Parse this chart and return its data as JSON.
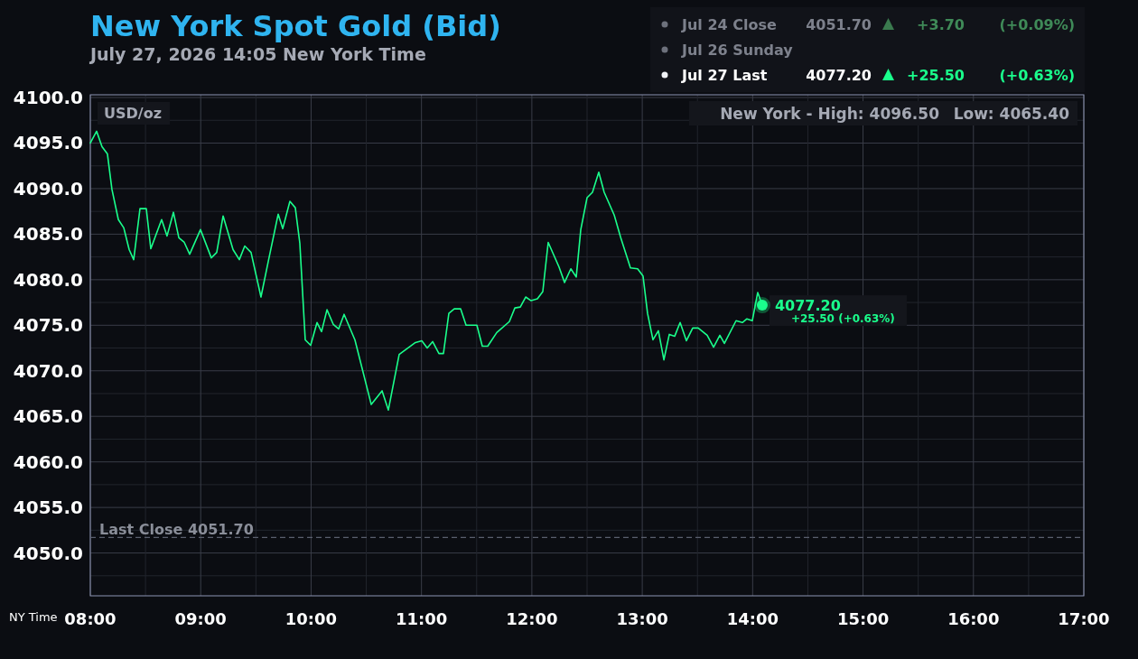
{
  "chart_data": {
    "type": "line",
    "title": "New York Spot Gold (Bid)",
    "subtitle": "July 27, 2026 14:05 New York Time",
    "xlabel": "NY Time",
    "ylabel": "USD/oz",
    "x": [
      8.0,
      8.057,
      8.106,
      8.155,
      8.196,
      8.254,
      8.303,
      8.352,
      8.393,
      8.45,
      8.507,
      8.548,
      8.646,
      8.695,
      8.753,
      8.802,
      8.851,
      8.9,
      8.998,
      9.096,
      9.145,
      9.203,
      9.293,
      9.35,
      9.399,
      9.456,
      9.546,
      9.612,
      9.702,
      9.743,
      9.808,
      9.857,
      9.898,
      9.947,
      9.996,
      10.054,
      10.095,
      10.144,
      10.201,
      10.25,
      10.299,
      10.397,
      10.545,
      10.643,
      10.7,
      10.798,
      10.945,
      11.003,
      11.052,
      11.101,
      11.158,
      11.199,
      11.248,
      11.297,
      11.355,
      11.404,
      11.502,
      11.551,
      11.6,
      11.682,
      11.796,
      11.846,
      11.895,
      11.944,
      11.993,
      12.05,
      12.099,
      12.148,
      12.246,
      12.296,
      12.353,
      12.402,
      12.443,
      12.5,
      12.549,
      12.606,
      12.655,
      12.746,
      12.803,
      12.893,
      12.958,
      13.007,
      13.048,
      13.097,
      13.146,
      13.196,
      13.245,
      13.294,
      13.343,
      13.4,
      13.457,
      13.507,
      13.588,
      13.646,
      13.703,
      13.744,
      13.85,
      13.907,
      13.948,
      13.997,
      14.046,
      14.087
    ],
    "series": [
      {
        "color": "#1aff8c",
        "values": [
          4095.0,
          4096.3,
          4094.6,
          4093.8,
          4089.9,
          4086.6,
          4085.7,
          4083.3,
          4082.2,
          4087.8,
          4087.8,
          4083.4,
          4086.6,
          4084.8,
          4087.4,
          4084.6,
          4084.1,
          4082.8,
          4085.5,
          4082.4,
          4083.0,
          4087.0,
          4083.3,
          4082.2,
          4083.7,
          4083.0,
          4078.1,
          4082.0,
          4087.2,
          4085.6,
          4088.6,
          4087.9,
          4084.0,
          4073.4,
          4072.8,
          4075.3,
          4074.3,
          4076.7,
          4075.1,
          4074.6,
          4076.2,
          4073.4,
          4066.3,
          4067.8,
          4065.7,
          4071.8,
          4073.1,
          4073.3,
          4072.5,
          4073.2,
          4071.9,
          4071.9,
          4076.3,
          4076.8,
          4076.8,
          4075.0,
          4075.0,
          4072.7,
          4072.7,
          4074.2,
          4075.4,
          4076.9,
          4077.0,
          4078.1,
          4077.7,
          4077.9,
          4078.7,
          4084.1,
          4081.4,
          4079.7,
          4081.2,
          4080.3,
          4085.5,
          4089.0,
          4089.6,
          4091.8,
          4089.6,
          4087.1,
          4084.7,
          4081.3,
          4081.2,
          4080.4,
          4076.3,
          4073.4,
          4074.4,
          4071.2,
          4074.0,
          4073.8,
          4075.3,
          4073.3,
          4074.7,
          4074.7,
          4073.9,
          4072.6,
          4073.9,
          4073.0,
          4075.5,
          4075.3,
          4075.7,
          4075.5,
          4078.6,
          4077.2
        ]
      }
    ],
    "xlim": [
      8,
      17
    ],
    "xticks": [
      {
        "value": 8,
        "label": "08:00"
      },
      {
        "value": 8.5,
        "label": null
      },
      {
        "value": 9,
        "label": "09:00"
      },
      {
        "value": 9.5,
        "label": null
      },
      {
        "value": 10,
        "label": "10:00"
      },
      {
        "value": 10.5,
        "label": null
      },
      {
        "value": 11,
        "label": "11:00"
      },
      {
        "value": 11.5,
        "label": null
      },
      {
        "value": 12,
        "label": "12:00"
      },
      {
        "value": 12.5,
        "label": null
      },
      {
        "value": 13,
        "label": "13:00"
      },
      {
        "value": 13.5,
        "label": null
      },
      {
        "value": 14,
        "label": "14:00"
      },
      {
        "value": 14.5,
        "label": null
      },
      {
        "value": 15,
        "label": "15:00"
      },
      {
        "value": 15.5,
        "label": null
      },
      {
        "value": 16,
        "label": "16:00"
      },
      {
        "value": 16.5,
        "label": null
      },
      {
        "value": 17,
        "label": "17:00"
      }
    ],
    "ylim": [
      4045.3,
      4100.3
    ],
    "yticks": [
      {
        "value": 4047.5,
        "label": null
      },
      {
        "value": 4050,
        "label": "4050.0"
      },
      {
        "value": 4052.5,
        "label": null
      },
      {
        "value": 4055,
        "label": "4055.0"
      },
      {
        "value": 4057.5,
        "label": null
      },
      {
        "value": 4060,
        "label": "4060.0"
      },
      {
        "value": 4062.5,
        "label": null
      },
      {
        "value": 4065,
        "label": "4065.0"
      },
      {
        "value": 4067.5,
        "label": null
      },
      {
        "value": 4070,
        "label": "4070.0"
      },
      {
        "value": 4072.5,
        "label": null
      },
      {
        "value": 4075,
        "label": "4075.0"
      },
      {
        "value": 4077.5,
        "label": null
      },
      {
        "value": 4080,
        "label": "4080.0"
      },
      {
        "value": 4082.5,
        "label": null
      },
      {
        "value": 4085,
        "label": "4085.0"
      },
      {
        "value": 4087.5,
        "label": null
      },
      {
        "value": 4090,
        "label": "4090.0"
      },
      {
        "value": 4092.5,
        "label": null
      },
      {
        "value": 4095,
        "label": "4095.0"
      },
      {
        "value": 4097.5,
        "label": null
      },
      {
        "value": 4100,
        "label": "4100.0"
      }
    ],
    "grid": true,
    "marker": "none",
    "line_style": "solid",
    "ref_lines": [
      {
        "axis": "y",
        "value": 4051.7,
        "label": "Last Close 4051.70",
        "color": "#5a5f6e",
        "line_style": "dashed"
      }
    ],
    "annotations": [
      "Jul 24 Close",
      "4051.70",
      "+3.70",
      "(+0.09%)",
      "Jul 26 Sunday",
      "Jul 27 Last",
      "4077.20",
      "+25.50",
      "(+0.63%)",
      "New York - High: 4096.50",
      "Low: 4065.40",
      {
        "text": "4077.20",
        "x": 14.087,
        "y": 4077.2
      },
      {
        "text": "+25.50 (+0.63%)",
        "x": 14.087,
        "y": 4077.2
      }
    ]
  }
}
